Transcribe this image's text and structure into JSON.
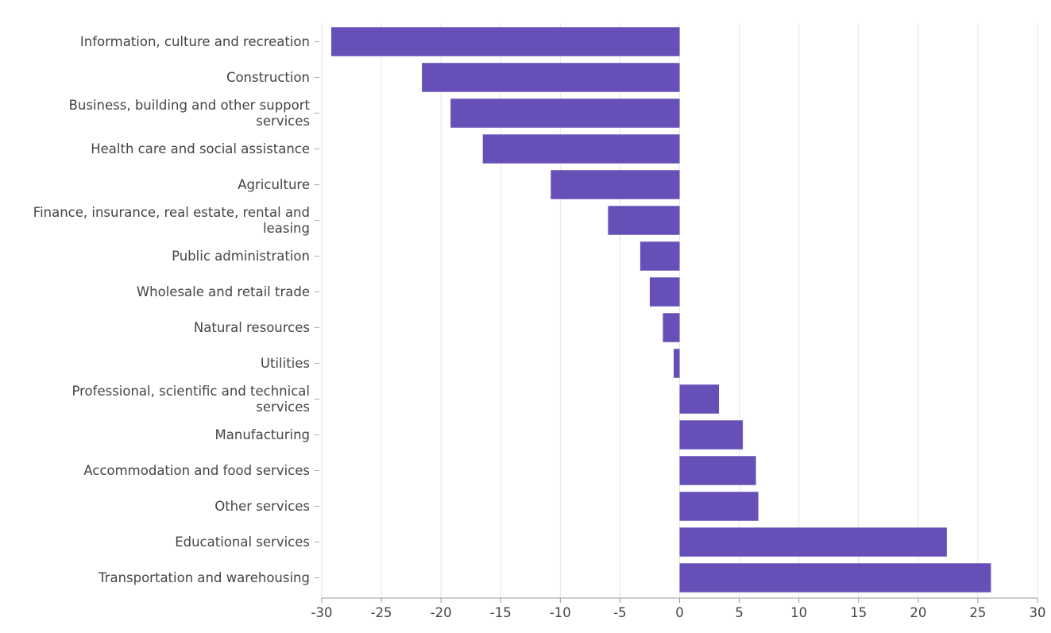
{
  "chart_data": {
    "type": "bar",
    "orientation": "horizontal",
    "title": "",
    "xlabel": "",
    "ylabel": "",
    "categories": [
      [
        "Information, culture and recreation"
      ],
      [
        "Construction"
      ],
      [
        "Business, building and other support",
        "services"
      ],
      [
        "Health care and social assistance"
      ],
      [
        "Agriculture"
      ],
      [
        "Finance, insurance, real estate, rental and",
        "leasing"
      ],
      [
        "Public administration"
      ],
      [
        "Wholesale and retail trade"
      ],
      [
        "Natural resources"
      ],
      [
        "Utilities"
      ],
      [
        "Professional, scientific and technical",
        "services"
      ],
      [
        "Manufacturing"
      ],
      [
        "Accommodation and food services"
      ],
      [
        "Other services"
      ],
      [
        "Educational services"
      ],
      [
        "Transportation and warehousing"
      ]
    ],
    "values": [
      -29.2,
      -21.6,
      -19.2,
      -16.5,
      -10.8,
      -6.0,
      -3.3,
      -2.5,
      -1.4,
      -0.5,
      3.3,
      5.3,
      6.4,
      6.6,
      22.4,
      26.1
    ],
    "xlim": [
      -30,
      30
    ],
    "xticks": [
      "-30",
      "-25",
      "-20",
      "-15",
      "-10",
      "-5",
      "0",
      "5",
      "10",
      "15",
      "20",
      "25",
      "30"
    ],
    "grid": "vertical",
    "legend": "none",
    "colors": {
      "bar": "#6650b8",
      "grid": "#e6e6e6",
      "axis": "#999999",
      "text": "#444444"
    }
  }
}
